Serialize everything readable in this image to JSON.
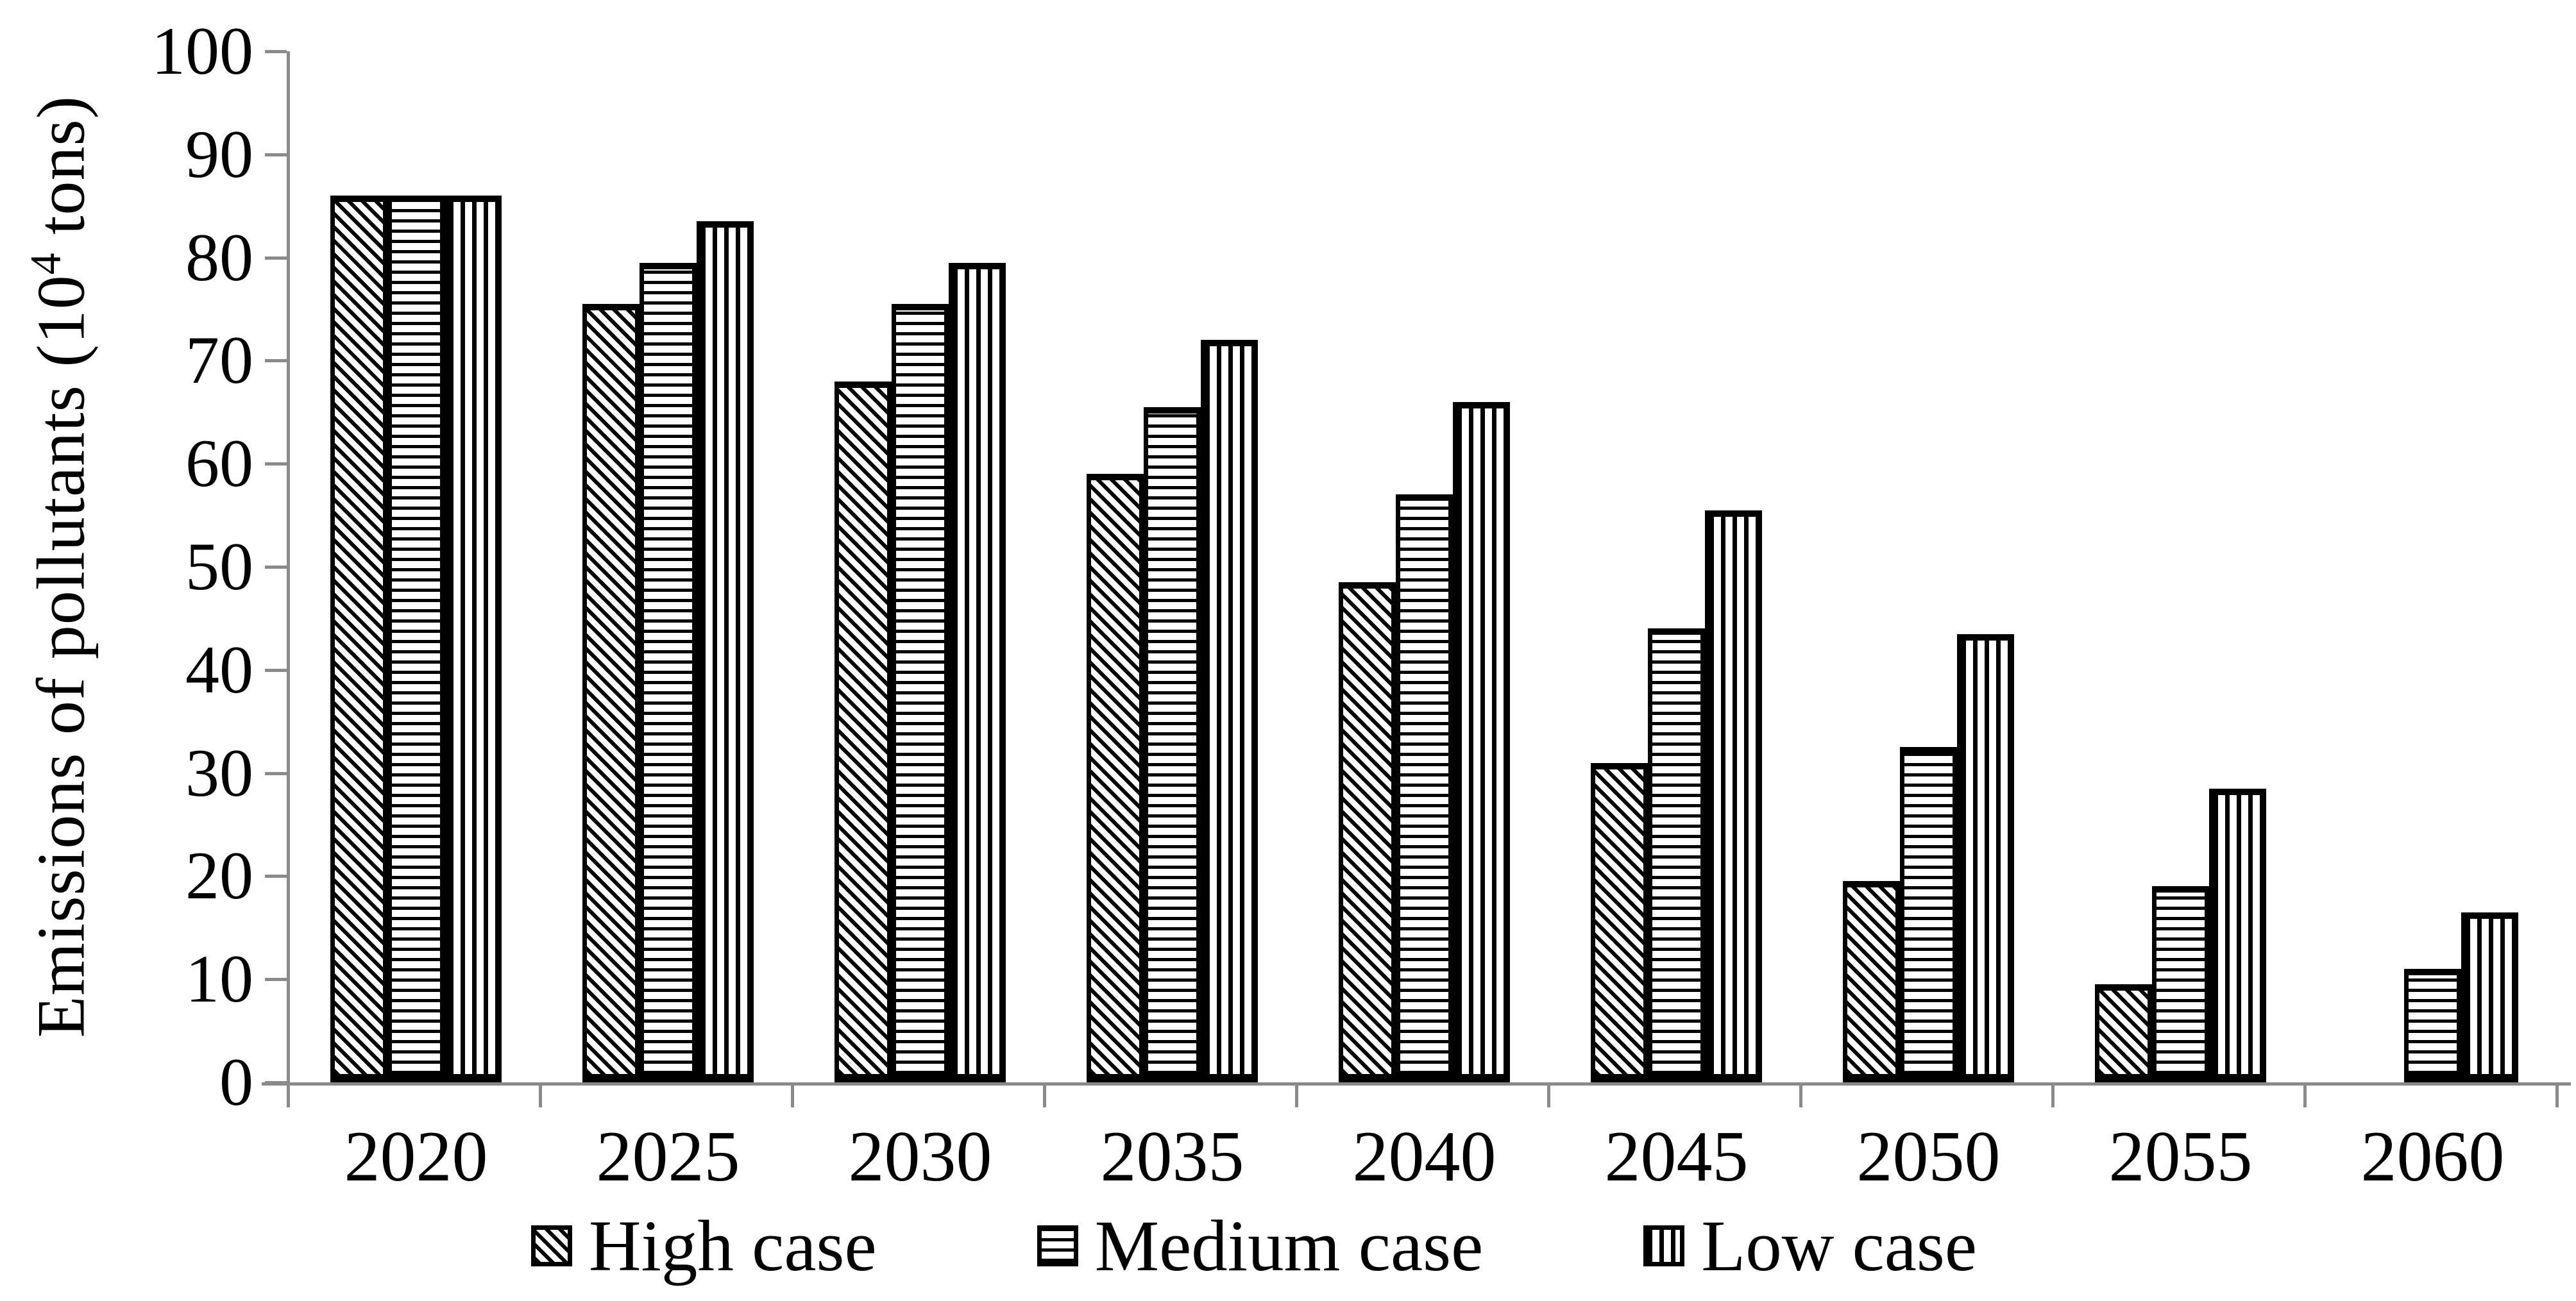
{
  "chart_data": {
    "type": "bar",
    "title": "",
    "xlabel": "",
    "ylabel": "Emissions of pollutants (10^4 tons)",
    "ylim": [
      0,
      100
    ],
    "ytick_step": 10,
    "grid": false,
    "legend_position": "bottom",
    "categories": [
      "2020",
      "2025",
      "2030",
      "2035",
      "2040",
      "2045",
      "2050",
      "2055",
      "2060"
    ],
    "series": [
      {
        "name": "High case",
        "pattern": "diagonal-stripes",
        "values": [
          86,
          75.5,
          68,
          59,
          48.5,
          31,
          19.5,
          9.5,
          0
        ]
      },
      {
        "name": "Medium case",
        "pattern": "horizontal-stripes",
        "values": [
          86,
          79.5,
          75.5,
          65.5,
          57,
          44,
          32.5,
          19,
          11
        ]
      },
      {
        "name": "Low case",
        "pattern": "vertical-stripes",
        "values": [
          86,
          83.5,
          79.5,
          72,
          66,
          55.5,
          43.5,
          28.5,
          16.5
        ]
      }
    ]
  },
  "y_axis": {
    "title_pre": "Emissions of pollutants (10",
    "title_sup": "4",
    "title_post": " tons)",
    "tick_labels": [
      "0",
      "10",
      "20",
      "30",
      "40",
      "50",
      "60",
      "70",
      "80",
      "90",
      "100"
    ]
  },
  "legend": {
    "items": [
      {
        "label": "High case",
        "pattern": "diagonal-stripes"
      },
      {
        "label": "Medium case",
        "pattern": "horizontal-stripes"
      },
      {
        "label": "Low case",
        "pattern": "vertical-stripes"
      }
    ]
  },
  "colors": {
    "background": "#ffffff",
    "bar_fill": "#ffffff",
    "bar_line": "#000000",
    "axis_line": "#8a8a8a",
    "text": "#000000"
  }
}
